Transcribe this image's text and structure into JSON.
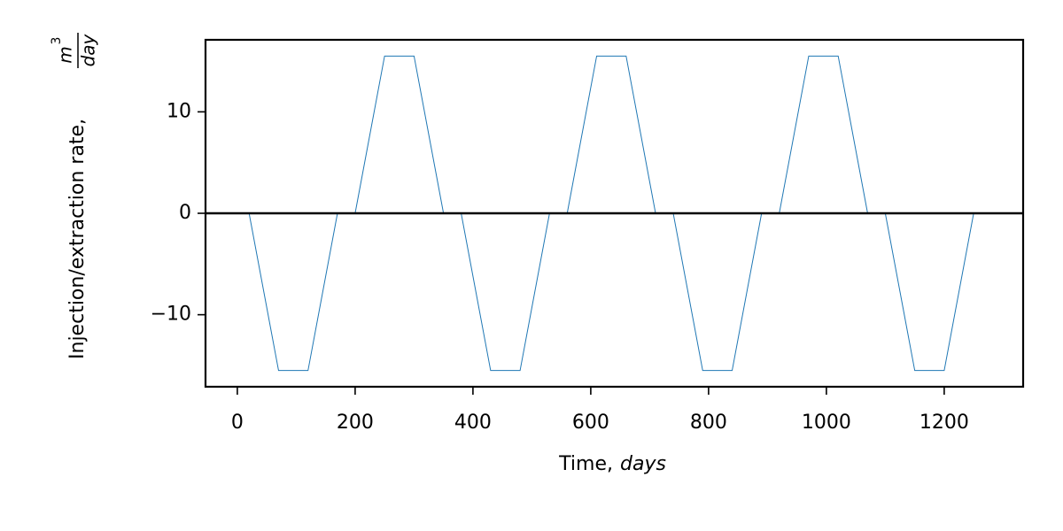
{
  "chart_data": {
    "type": "line",
    "xlabel": "Time,",
    "xlabel_unit": "days",
    "ylabel": "Injection/extraction rate,",
    "ylabel_fraction": {
      "numerator": "m",
      "exponent": "3",
      "denominator": "day"
    },
    "x": [
      0,
      20,
      70,
      120,
      170,
      200,
      250,
      300,
      350,
      380,
      430,
      480,
      530,
      560,
      610,
      660,
      710,
      740,
      790,
      840,
      890,
      920,
      970,
      1020,
      1070,
      1100,
      1150,
      1200,
      1250
    ],
    "series": [
      {
        "color": "#1f77b4",
        "values": [
          0,
          0,
          -15.5,
          -15.5,
          0,
          0,
          15.5,
          15.5,
          0,
          0,
          -15.5,
          -15.5,
          0,
          0,
          15.5,
          15.5,
          0,
          0,
          -15.5,
          -15.5,
          0,
          0,
          15.5,
          15.5,
          0,
          0,
          -15.5,
          -15.5,
          0
        ]
      }
    ],
    "hline": 0,
    "xlim": [
      -54,
      1334
    ],
    "ylim": [
      -17.1,
      17.1
    ],
    "xticks": [
      0,
      200,
      400,
      600,
      800,
      1000,
      1200
    ],
    "yticks": [
      {
        "value": -10,
        "label": "−10"
      },
      0,
      10
    ],
    "grid": false
  }
}
